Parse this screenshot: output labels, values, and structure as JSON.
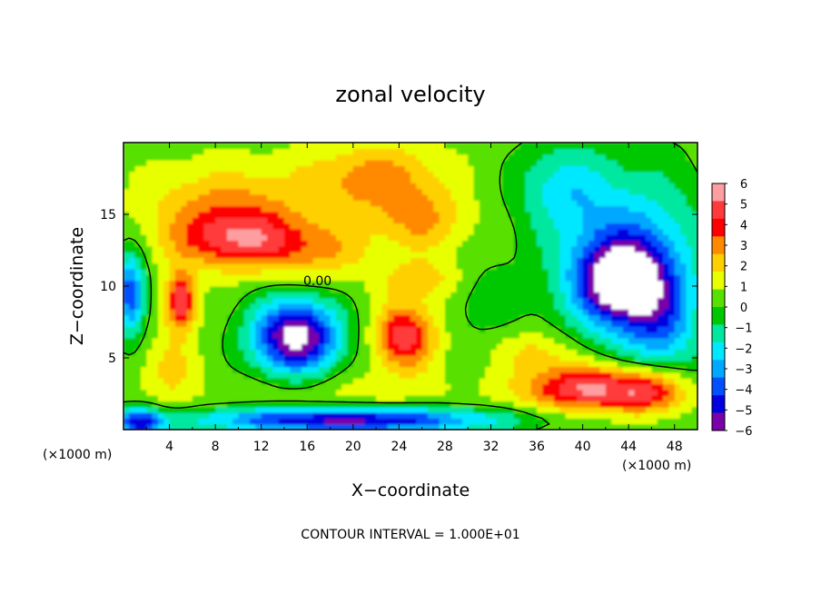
{
  "chart_data": {
    "type": "heatmap",
    "title": "zonal velocity",
    "xlabel": "X−coordinate",
    "ylabel": "Z−coordinate",
    "x_unit_label": "(×1000 m)",
    "x_unit_label_right": "(×1000 m)",
    "footnote": "CONTOUR INTERVAL = 1.000E+01",
    "contour_label": "0.00",
    "xlim": [
      0,
      50
    ],
    "ylim": [
      0,
      20
    ],
    "x_ticks": [
      {
        "value": 4,
        "label": "4"
      },
      {
        "value": 8,
        "label": "8"
      },
      {
        "value": 12,
        "label": "12"
      },
      {
        "value": 16,
        "label": "16"
      },
      {
        "value": 20,
        "label": "20"
      },
      {
        "value": 24,
        "label": "24"
      },
      {
        "value": 28,
        "label": "28"
      },
      {
        "value": 32,
        "label": "32"
      },
      {
        "value": 36,
        "label": "36"
      },
      {
        "value": 40,
        "label": "40"
      },
      {
        "value": 44,
        "label": "44"
      },
      {
        "value": 48,
        "label": "48"
      }
    ],
    "y_ticks": [
      {
        "value": 5,
        "label": "5"
      },
      {
        "value": 10,
        "label": "10"
      },
      {
        "value": 15,
        "label": "15"
      }
    ],
    "colorbar": {
      "range": [
        -6,
        6
      ],
      "tick_labels": [
        "6",
        "5",
        "4",
        "3",
        "2",
        "1",
        "0",
        "−1",
        "−2",
        "−3",
        "−4",
        "−5",
        "−6"
      ],
      "colors": [
        "#ff9ea0",
        "#ff3a3a",
        "#ff0000",
        "#ff8a00",
        "#ffd000",
        "#e8ff00",
        "#58e000",
        "#00c800",
        "#00e8a0",
        "#00e8ff",
        "#00a8ff",
        "#0050ff",
        "#0000e0",
        "#7a00a8"
      ]
    },
    "blobs": [
      {
        "x": 10,
        "z": 13.2,
        "rx": 5.5,
        "rz": 2.0,
        "v": 3.4
      },
      {
        "x": 9,
        "z": 15.5,
        "rx": 7.0,
        "rz": 3.0,
        "v": 2.3
      },
      {
        "x": 22,
        "z": 17.5,
        "rx": 6.0,
        "rz": 2.5,
        "v": 2.6
      },
      {
        "x": 26,
        "z": 14.5,
        "rx": 4.0,
        "rz": 2.0,
        "v": 2.0
      },
      {
        "x": 17,
        "z": 12.5,
        "rx": 5.0,
        "rz": 2.0,
        "v": 1.8
      },
      {
        "x": 26,
        "z": 10.5,
        "rx": 3.5,
        "rz": 1.5,
        "v": 1.8
      },
      {
        "x": 5,
        "z": 9.0,
        "rx": 1.3,
        "rz": 2.0,
        "v": 4.8
      },
      {
        "x": 4,
        "z": 4.2,
        "rx": 2.5,
        "rz": 2.5,
        "v": 1.5
      },
      {
        "x": 24.5,
        "z": 6.5,
        "rx": 2.6,
        "rz": 2.2,
        "v": 4.5
      },
      {
        "x": 36,
        "z": 5.5,
        "rx": 3.5,
        "rz": 1.5,
        "v": 1.6
      },
      {
        "x": 40.5,
        "z": 2.9,
        "rx": 5.5,
        "rz": 1.6,
        "v": 5.0
      },
      {
        "x": 46,
        "z": 2.6,
        "rx": 3.0,
        "rz": 1.5,
        "v": 3.0
      },
      {
        "x": 20,
        "z": 2.5,
        "rx": 10.0,
        "rz": 1.6,
        "v": 0.8
      },
      {
        "x": 44,
        "z": 12,
        "rx": 6.5,
        "rz": 6.0,
        "v": -3.6
      },
      {
        "x": 43.5,
        "z": 10.3,
        "rx": 3.8,
        "rz": 2.8,
        "v": -6.0
      },
      {
        "x": 38,
        "z": 17,
        "rx": 4.0,
        "rz": 3.0,
        "v": -2.0
      },
      {
        "x": 47,
        "z": 7,
        "rx": 3.0,
        "rz": 3.0,
        "v": -2.5
      },
      {
        "x": 15,
        "z": 6.5,
        "rx": 3.8,
        "rz": 2.6,
        "v": -7.0
      },
      {
        "x": 19.5,
        "z": 0.7,
        "rx": 13.0,
        "rz": 0.9,
        "v": -6.0
      },
      {
        "x": 0.6,
        "z": 9.5,
        "rx": 1.3,
        "rz": 3.0,
        "v": -4.5
      },
      {
        "x": 31.5,
        "z": 9.0,
        "rx": 3.0,
        "rz": 2.5,
        "v": -1.0
      },
      {
        "x": 1.5,
        "z": 0.5,
        "rx": 2.0,
        "rz": 1.0,
        "v": -5.0
      }
    ]
  }
}
